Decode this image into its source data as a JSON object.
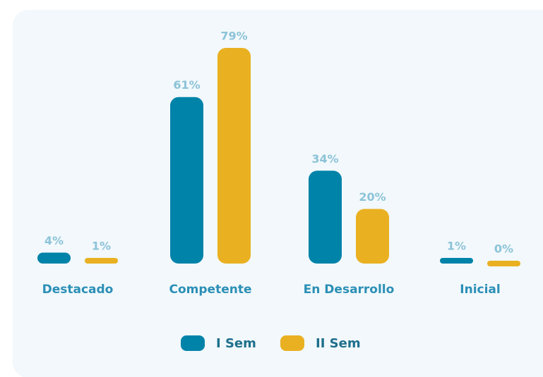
{
  "chart_data": {
    "type": "bar",
    "categories": [
      "Destacado",
      "Competente",
      "En Desarrollo",
      "Inicial"
    ],
    "series": [
      {
        "name": "I Sem",
        "color": "#0083a9",
        "values": [
          4,
          61,
          34,
          1
        ],
        "value_labels": [
          "4%",
          "61%",
          "34%",
          "1%"
        ]
      },
      {
        "name": "II Sem",
        "color": "#e9b021",
        "values": [
          1,
          79,
          20,
          0
        ],
        "value_labels": [
          "1%",
          "79%",
          "20%",
          "0%"
        ]
      }
    ]
  }
}
